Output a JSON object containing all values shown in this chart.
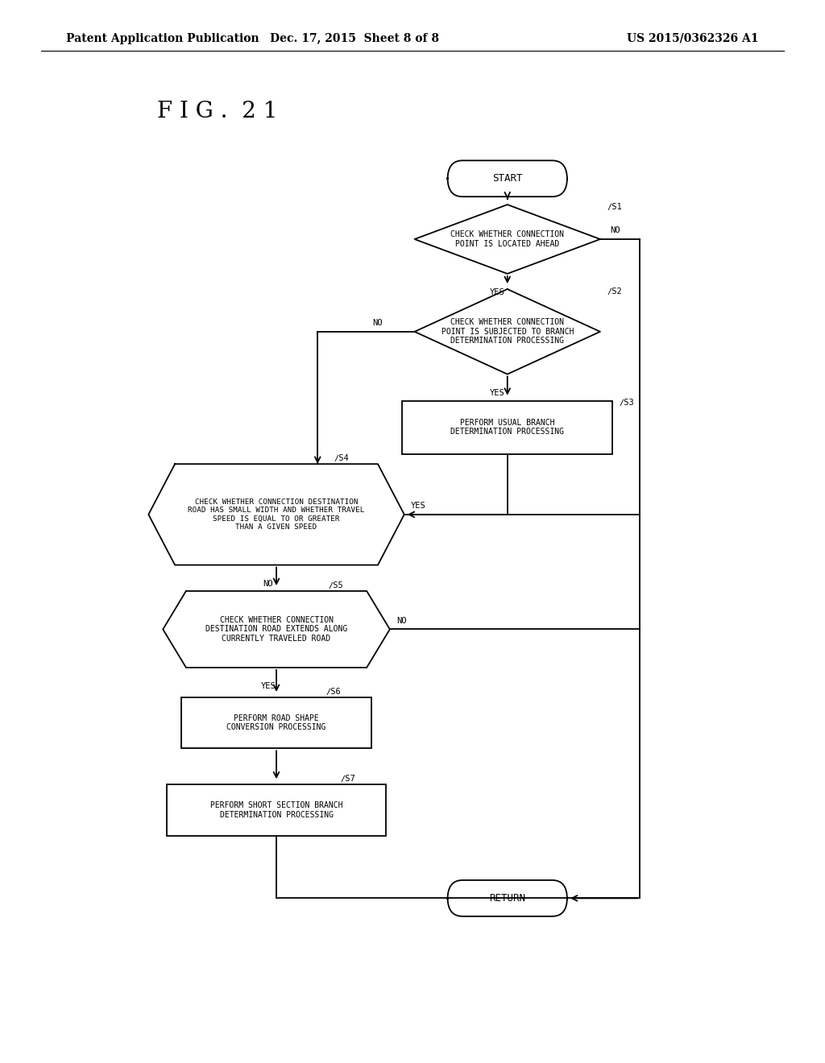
{
  "header_left": "Patent Application Publication",
  "header_center": "Dec. 17, 2015  Sheet 8 of 8",
  "header_right": "US 2015/0362326 A1",
  "title": "F I G .  2 1",
  "background_color": "#ffffff",
  "line_color": "#000000",
  "text_color": "#000000",
  "font_size_header": 10,
  "font_size_title": 20,
  "font_size_node": 7.0,
  "font_size_label": 7.5
}
